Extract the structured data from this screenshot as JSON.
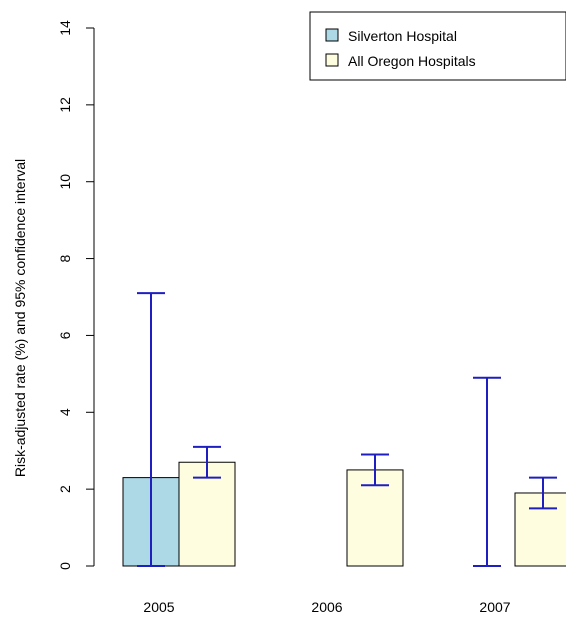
{
  "chart_data": {
    "type": "bar",
    "ylabel": "Risk-adjusted rate (%) and 95% confidence interval",
    "ylim": [
      0,
      14
    ],
    "yticks": [
      "0",
      "2",
      "4",
      "6",
      "8",
      "10",
      "12",
      "14"
    ],
    "categories": [
      "2005",
      "2006",
      "2007"
    ],
    "legend_position": "top-right",
    "series": [
      {
        "name": "Silverton Hospital",
        "color": "#add8e6",
        "values": [
          2.3,
          0,
          0
        ],
        "ci_low": [
          0,
          null,
          0
        ],
        "ci_high": [
          7.1,
          null,
          4.9
        ]
      },
      {
        "name": "All Oregon Hospitals",
        "color": "#fffde0",
        "values": [
          2.7,
          2.5,
          1.9
        ],
        "ci_low": [
          2.3,
          2.1,
          1.5
        ],
        "ci_high": [
          3.1,
          2.9,
          2.3
        ]
      }
    ],
    "error_bar_color": "#1f1fbf"
  }
}
